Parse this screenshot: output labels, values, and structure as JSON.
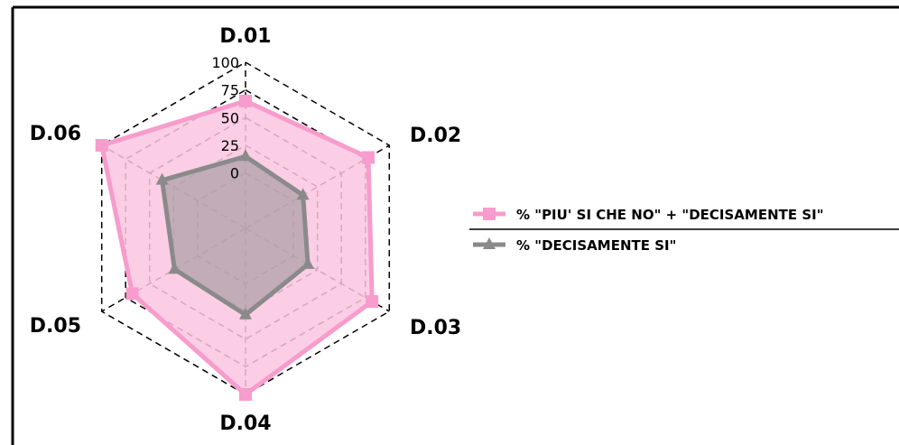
{
  "chart_data": {
    "type": "radar",
    "axes": [
      "D.01",
      "D.02",
      "D.03",
      "D.04",
      "D.05",
      "D.06"
    ],
    "rlim": [
      -50,
      100
    ],
    "ticks": [
      "0",
      "25",
      "50",
      "75",
      "100"
    ],
    "tick_values": [
      0,
      25,
      50,
      75,
      100
    ],
    "grid": true,
    "legend_position": "right",
    "series": [
      {
        "name": "% \"PIU' SI CHE NO\" + \"DECISAMENTE SI\"",
        "values": [
          65,
          78,
          82,
          100,
          68,
          100
        ],
        "color": "#f79ccc",
        "fill": "#fcc6e0",
        "marker": "square"
      },
      {
        "name": "% \"DECISAMENTE SI\"",
        "values": [
          15,
          10,
          15,
          28,
          24,
          37
        ],
        "color": "#8a8a8a",
        "fill": "#a89ea4",
        "marker": "triangle"
      }
    ]
  }
}
